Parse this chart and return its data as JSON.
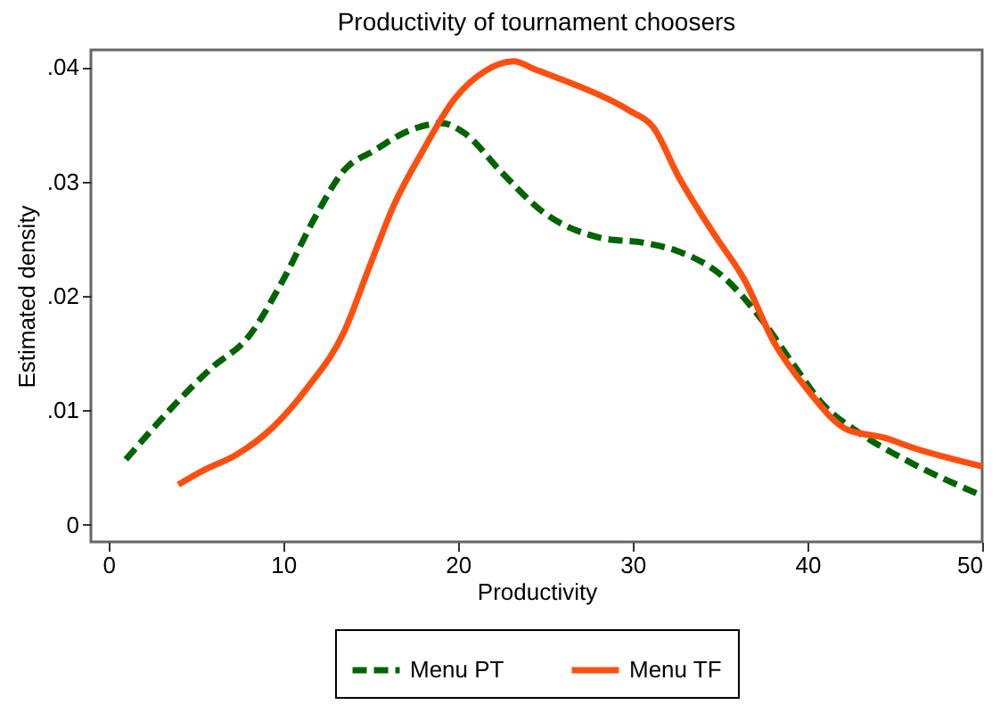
{
  "chart_data": {
    "type": "line",
    "title": "Productivity of tournament choosers",
    "xlabel": "Productivity",
    "ylabel": "Estimated density",
    "series": [
      {
        "name": "Menu PT",
        "color": "#006400",
        "line_style": "dashed",
        "x": [
          1.0,
          3.8,
          5.9,
          8.0,
          10.0,
          11.8,
          13.5,
          15.2,
          17.3,
          19.1,
          20.4,
          22.5,
          24.9,
          28.1,
          30.8,
          32.6,
          35.0,
          37.4,
          39.2,
          40.9,
          43.0,
          45.7,
          49.9
        ],
        "values": [
          0.0057,
          0.0105,
          0.0137,
          0.0164,
          0.0214,
          0.0268,
          0.031,
          0.0327,
          0.0345,
          0.0351,
          0.0342,
          0.0308,
          0.0273,
          0.0251,
          0.0246,
          0.0239,
          0.0219,
          0.0179,
          0.014,
          0.0105,
          0.008,
          0.0056,
          0.0026
        ]
      },
      {
        "name": "Menu TF",
        "color": "#ff4f0f",
        "line_style": "solid",
        "x": [
          4.0,
          5.5,
          7.3,
          9.4,
          11.4,
          13.5,
          14.9,
          16.3,
          18.0,
          19.8,
          21.5,
          23.2,
          24.4,
          26.3,
          29.8,
          31.2,
          32.6,
          34.7,
          36.4,
          38.1,
          39.9,
          42.3,
          44.4,
          46.1,
          50.0
        ],
        "values": [
          0.0035,
          0.0048,
          0.0061,
          0.0085,
          0.012,
          0.0169,
          0.0224,
          0.0278,
          0.0327,
          0.0372,
          0.0396,
          0.0405,
          0.0398,
          0.0387,
          0.0362,
          0.0347,
          0.0305,
          0.0253,
          0.0214,
          0.0159,
          0.012,
          0.0083,
          0.0076,
          0.0067,
          0.0051
        ]
      }
    ],
    "xlim": [
      -1,
      50
    ],
    "xticks": [
      0,
      10,
      20,
      30,
      40,
      50
    ],
    "ylim": [
      -0.0015,
      0.0415
    ],
    "yticks": [
      0,
      {
        "value": 0.01,
        "label": ".01"
      },
      {
        "value": 0.02,
        "label": ".02"
      },
      {
        "value": 0.03,
        "label": ".03"
      },
      {
        "value": 0.04,
        "label": ".04"
      }
    ],
    "grid": false,
    "legend": "bottom",
    "marker": "none"
  }
}
